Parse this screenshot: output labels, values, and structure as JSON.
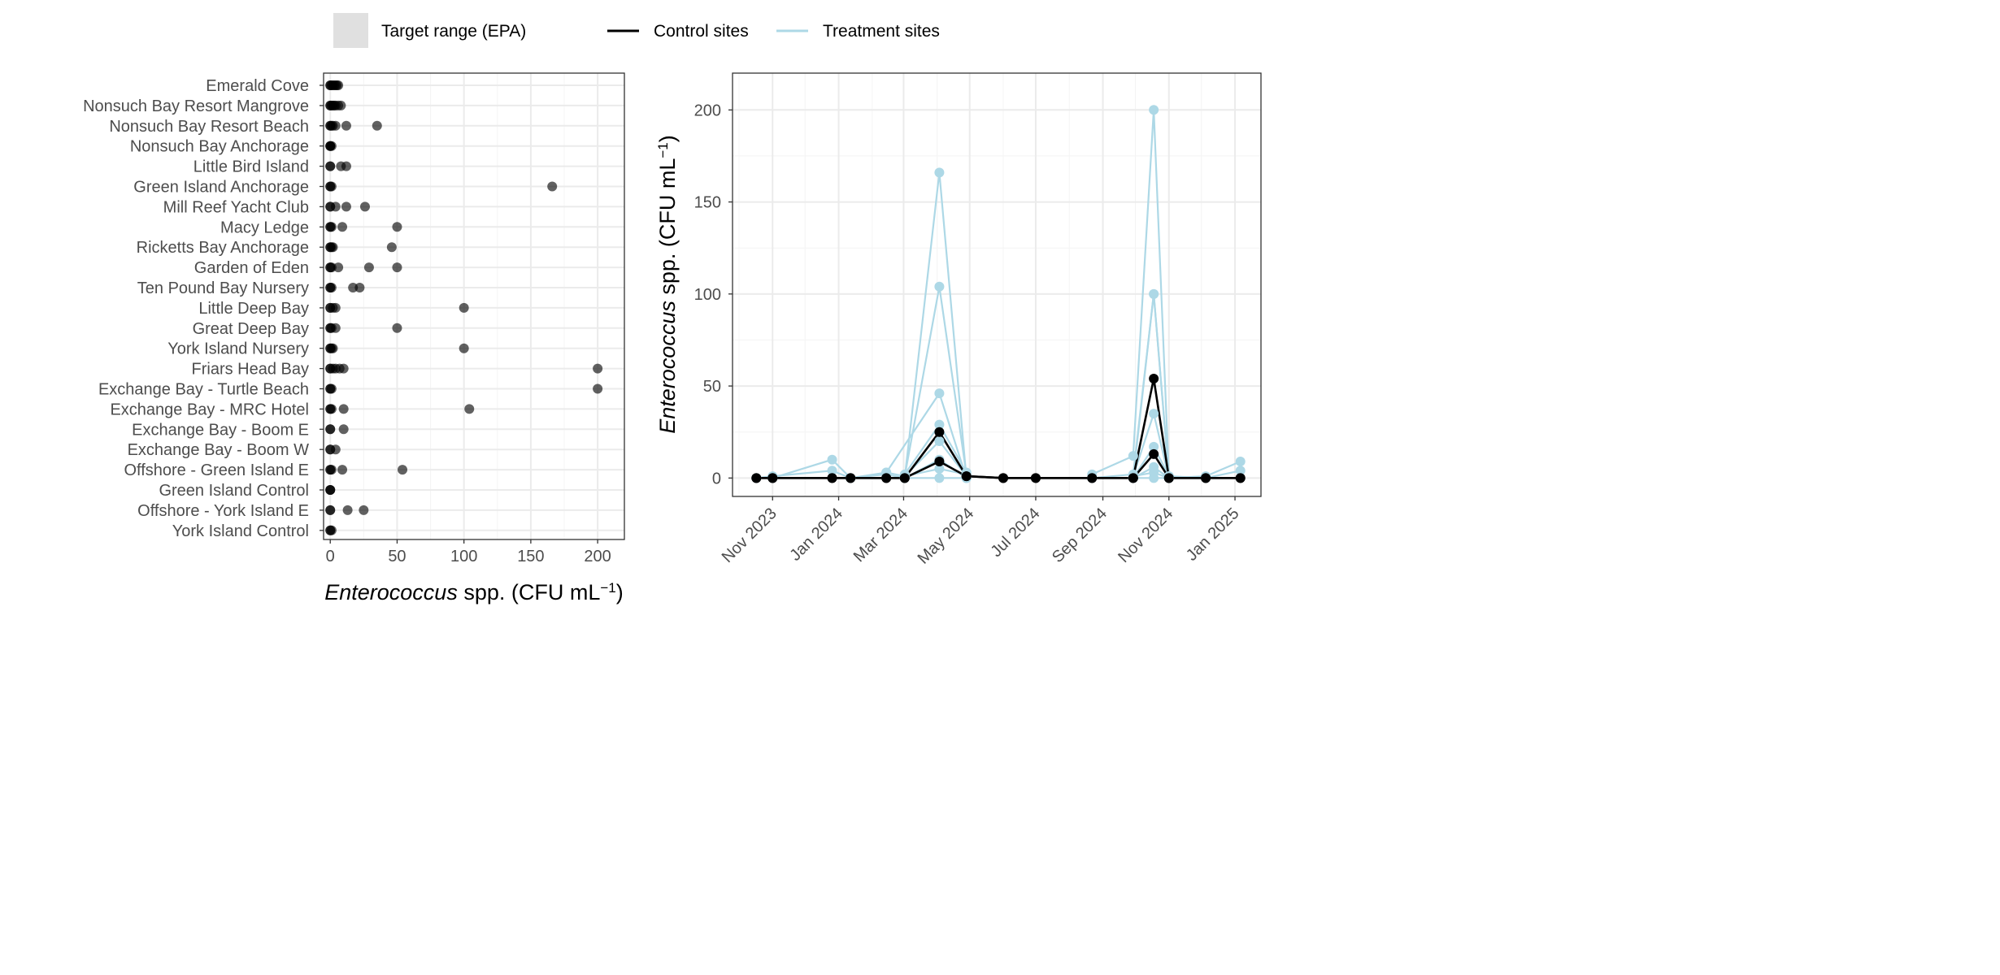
{
  "legend": {
    "target_range": "Target range (EPA)",
    "control": "Control sites",
    "treatment": "Treatment sites"
  },
  "colors": {
    "control": "#000000",
    "treatment": "#add8e6",
    "target_fill": "#e0e0e0",
    "points_left": "#000000"
  },
  "chart_data": [
    {
      "type": "scatter",
      "orientation": "horizontal",
      "xlabel_italic": "Enterococcus",
      "xlabel_rest": " spp. (CFU mL",
      "xlabel_sup": "−1",
      "xlabel_close": ")",
      "xlim": [
        -5,
        220
      ],
      "xticks": [
        0,
        50,
        100,
        150,
        200
      ],
      "xtick_labels": [
        "0",
        "50",
        "100",
        "150",
        "200"
      ],
      "grid": true,
      "categories": [
        "Emerald Cove",
        "Nonsuch Bay Resort Mangrove",
        "Nonsuch Bay Resort Beach",
        "Nonsuch Bay Anchorage",
        "Little Bird Island",
        "Green Island Anchorage",
        "Mill Reef Yacht Club",
        "Macy Ledge",
        "Ricketts Bay Anchorage",
        "Garden of Eden",
        "Ten Pound Bay Nursery",
        "Little Deep Bay",
        "Great Deep Bay",
        "York Island Nursery",
        "Friars Head Bay",
        "Exchange Bay - Turtle Beach",
        "Exchange Bay - MRC Hotel",
        "Exchange Bay - Boom E",
        "Exchange Bay - Boom W",
        "Offshore - Green Island E",
        "Green Island Control",
        "Offshore - York Island E",
        "York Island Control"
      ],
      "values": [
        [
          0,
          0,
          1,
          2,
          3,
          4,
          5,
          6
        ],
        [
          0,
          0,
          1,
          2,
          3,
          4,
          6,
          8
        ],
        [
          0,
          0,
          1,
          2,
          4,
          12,
          35
        ],
        [
          0,
          0,
          0,
          1
        ],
        [
          0,
          0,
          8,
          12
        ],
        [
          0,
          0,
          1,
          166
        ],
        [
          0,
          0,
          4,
          12,
          26
        ],
        [
          0,
          0,
          1,
          9,
          50
        ],
        [
          0,
          0,
          1,
          2,
          46
        ],
        [
          0,
          0,
          1,
          6,
          29,
          50
        ],
        [
          0,
          0,
          1,
          17,
          22
        ],
        [
          0,
          0,
          2,
          4,
          100
        ],
        [
          0,
          0,
          1,
          4,
          50
        ],
        [
          0,
          0,
          1,
          2,
          100
        ],
        [
          0,
          0,
          2,
          4,
          7,
          10,
          200
        ],
        [
          0,
          0,
          1,
          200
        ],
        [
          0,
          0,
          1,
          10,
          104
        ],
        [
          0,
          0,
          10
        ],
        [
          0,
          0,
          4
        ],
        [
          0,
          0,
          1,
          9,
          54
        ],
        [
          0,
          0,
          0
        ],
        [
          0,
          0,
          13,
          25
        ],
        [
          0,
          0,
          1
        ]
      ]
    },
    {
      "type": "line",
      "ylabel_italic": "Enterococcus",
      "ylabel_rest": " spp. (CFU mL",
      "ylabel_sup": "−1",
      "ylabel_close": ")",
      "ylim": [
        -10,
        220
      ],
      "yticks": [
        0,
        50,
        100,
        150,
        200
      ],
      "ytick_labels": [
        "0",
        "50",
        "100",
        "150",
        "200"
      ],
      "xlim": [
        "2023-09-25",
        "2025-01-25"
      ],
      "xticks": [
        "2023-11-01",
        "2024-01-01",
        "2024-03-01",
        "2024-05-01",
        "2024-07-01",
        "2024-09-01",
        "2024-11-01",
        "2025-01-01"
      ],
      "xtick_labels": [
        "Nov 2023",
        "Jan 2024",
        "Mar 2024",
        "May 2024",
        "Jul 2024",
        "Sep 2024",
        "Nov 2024",
        "Jan 2025"
      ],
      "grid": true,
      "series": [
        {
          "group": "treatment",
          "x": [
            "2023-10-17",
            "2023-11-01",
            "2023-12-26",
            "2024-01-12",
            "2024-02-14",
            "2024-03-02",
            "2024-04-03",
            "2024-04-28"
          ],
          "y": [
            0,
            0,
            10,
            0,
            2,
            0,
            166,
            0
          ]
        },
        {
          "group": "treatment",
          "x": [
            "2023-10-17",
            "2023-11-01",
            "2023-12-26",
            "2024-01-12",
            "2024-02-14",
            "2024-03-02",
            "2024-04-03",
            "2024-04-28"
          ],
          "y": [
            0,
            1,
            4,
            0,
            3,
            1,
            104,
            2
          ]
        },
        {
          "group": "treatment",
          "x": [
            "2024-02-14",
            "2024-04-03",
            "2024-04-28"
          ],
          "y": [
            3,
            46,
            0
          ]
        },
        {
          "group": "treatment",
          "x": [
            "2024-03-02",
            "2024-04-03",
            "2024-04-28"
          ],
          "y": [
            2,
            29,
            3
          ]
        },
        {
          "group": "treatment",
          "x": [
            "2024-03-02",
            "2024-04-03",
            "2024-04-28"
          ],
          "y": [
            1,
            20,
            1
          ]
        },
        {
          "group": "treatment",
          "x": [
            "2024-03-02",
            "2024-04-03",
            "2024-04-28"
          ],
          "y": [
            0,
            10,
            0
          ]
        },
        {
          "group": "treatment",
          "x": [
            "2024-03-02",
            "2024-04-03",
            "2024-04-28"
          ],
          "y": [
            1,
            5,
            2
          ]
        },
        {
          "group": "treatment",
          "x": [
            "2024-03-02",
            "2024-04-03",
            "2024-04-28"
          ],
          "y": [
            0,
            0,
            0
          ]
        },
        {
          "group": "treatment",
          "x": [
            "2024-08-22",
            "2024-09-29",
            "2024-10-18",
            "2024-11-01",
            "2024-12-05",
            "2025-01-06"
          ],
          "y": [
            2,
            12,
            200,
            0,
            1,
            9
          ]
        },
        {
          "group": "treatment",
          "x": [
            "2024-08-22",
            "2024-09-29",
            "2024-10-18",
            "2024-11-01",
            "2024-12-05",
            "2025-01-06"
          ],
          "y": [
            0,
            2,
            100,
            1,
            0,
            4
          ]
        },
        {
          "group": "treatment",
          "x": [
            "2024-09-29",
            "2024-10-18",
            "2024-11-01"
          ],
          "y": [
            0,
            100,
            0
          ]
        },
        {
          "group": "treatment",
          "x": [
            "2024-09-29",
            "2024-10-18",
            "2024-11-01"
          ],
          "y": [
            1,
            35,
            0
          ]
        },
        {
          "group": "treatment",
          "x": [
            "2024-09-29",
            "2024-10-18",
            "2024-11-01"
          ],
          "y": [
            0,
            17,
            1
          ]
        },
        {
          "group": "treatment",
          "x": [
            "2024-09-29",
            "2024-10-18",
            "2024-11-01"
          ],
          "y": [
            0,
            6,
            0
          ]
        },
        {
          "group": "treatment",
          "x": [
            "2024-09-29",
            "2024-10-18",
            "2024-11-01"
          ],
          "y": [
            1,
            3,
            0
          ]
        },
        {
          "group": "treatment",
          "x": [
            "2024-09-29",
            "2024-10-18",
            "2024-11-01"
          ],
          "y": [
            0,
            0,
            0
          ]
        },
        {
          "group": "control",
          "x": [
            "2023-10-17",
            "2023-11-01",
            "2023-12-26",
            "2024-01-12",
            "2024-02-14",
            "2024-03-02",
            "2024-04-03",
            "2024-04-28",
            "2024-06-01",
            "2024-07-01",
            "2024-08-22",
            "2024-09-29",
            "2024-10-18",
            "2024-11-01",
            "2024-12-05",
            "2025-01-06"
          ],
          "y": [
            0,
            0,
            0,
            0,
            0,
            0,
            25,
            1,
            0,
            0,
            0,
            0,
            54,
            0,
            0,
            0
          ]
        },
        {
          "group": "control",
          "x": [
            "2023-10-17",
            "2023-11-01",
            "2023-12-26",
            "2024-01-12",
            "2024-02-14",
            "2024-03-02",
            "2024-04-03",
            "2024-04-28",
            "2024-06-01",
            "2024-07-01",
            "2024-08-22",
            "2024-09-29",
            "2024-10-18",
            "2024-11-01",
            "2024-12-05",
            "2025-01-06"
          ],
          "y": [
            0,
            0,
            0,
            0,
            0,
            0,
            9,
            1,
            0,
            0,
            0,
            0,
            13,
            0,
            0,
            0
          ]
        }
      ]
    }
  ]
}
